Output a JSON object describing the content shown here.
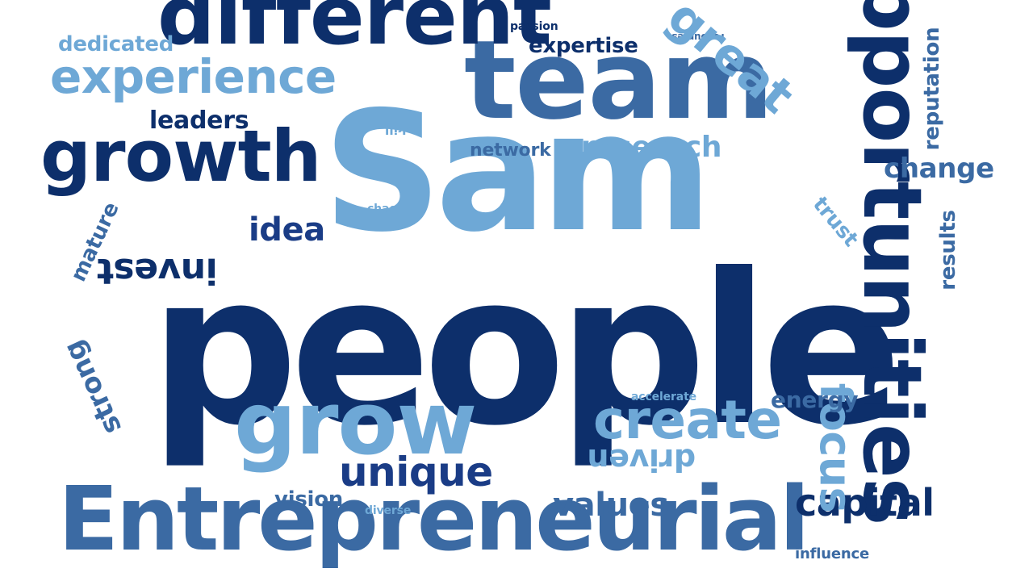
{
  "words": [
    "people",
    "Sam",
    "team",
    "growth",
    "Entrepreneurial",
    "grow",
    "experience",
    "opportunities",
    "create",
    "unique",
    "values",
    "capital",
    "focus",
    "change",
    "research",
    "network",
    "leaders",
    "idea",
    "invest",
    "strong",
    "mature",
    "dedicated",
    "expertise",
    "passion",
    "resources",
    "great",
    "reputation",
    "skill",
    "chaos",
    "trust",
    "results",
    "accelerate",
    "energy",
    "driven",
    "vision",
    "diverse",
    "influence",
    "different"
  ],
  "colors": {
    "navy": "#0d2f6b",
    "steel": "#3b6aa3",
    "light": "#6ea8d6",
    "royal": "#1a3c86"
  }
}
